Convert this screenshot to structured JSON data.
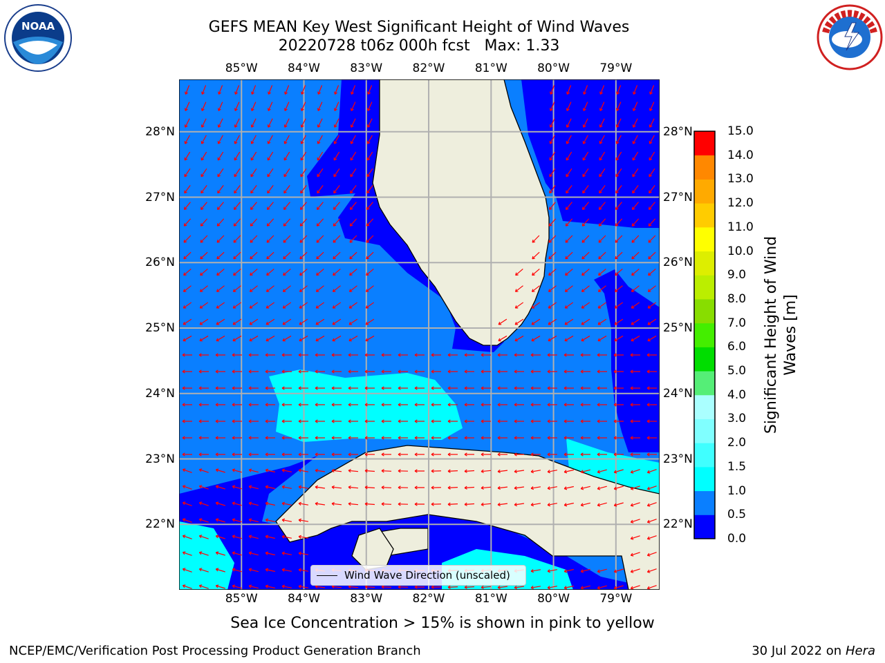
{
  "title": {
    "line1": "GEFS MEAN Key West Significant Height of Wind Waves",
    "line2": "20220728 t06z 000h fcst   Max: 1.33"
  },
  "map": {
    "lon_ticks_top": [
      "85°W",
      "84°W",
      "83°W",
      "82°W",
      "81°W",
      "80°W",
      "79°W"
    ],
    "lon_ticks_bottom": [
      "85°W",
      "84°W",
      "83°W",
      "82°W",
      "81°W",
      "80°W",
      "79°W"
    ],
    "lat_ticks_left": [
      "28°N",
      "27°N",
      "26°N",
      "25°N",
      "24°N",
      "23°N",
      "22°N"
    ],
    "lat_ticks_right": [
      "28°N",
      "27°N",
      "26°N",
      "25°N",
      "24°N",
      "23°N",
      "22°N"
    ],
    "lon_range": [
      -86.0,
      -78.3
    ],
    "lat_range": [
      21.0,
      28.8
    ],
    "legend_label": "Wind Wave Direction (unscaled)",
    "land_color": "#eeeedd",
    "arrow_color": "#ff0000"
  },
  "colorbar": {
    "label": "Significant Height of Wind Waves [m]",
    "tick_labels": [
      "0.0",
      "0.5",
      "1.0",
      "1.5",
      "2.0",
      "3.0",
      "4.0",
      "5.0",
      "6.0",
      "7.0",
      "8.0",
      "9.0",
      "10.0",
      "11.0",
      "12.0",
      "13.0",
      "14.0",
      "15.0"
    ],
    "colors": [
      "#0000ff",
      "#0a7fff",
      "#00ffff",
      "#40ffff",
      "#80ffff",
      "#aaffff",
      "#55ee77",
      "#00dd00",
      "#44ee00",
      "#88dd00",
      "#bbee00",
      "#ddee00",
      "#ffff00",
      "#ffdd00",
      "#ffbb00",
      "#ff8800",
      "#ff5500",
      "#ff2200",
      "#ff0000"
    ]
  },
  "note": "Sea Ice Concentration > 15% is shown in pink to yellow",
  "footer": {
    "left": "NCEP/EMC/Verification Post Processing Product Generation Branch",
    "right_prefix": "30 Jul 2022 on ",
    "right_host": "Hera"
  },
  "logos": {
    "noaa": "NOAA",
    "nws": "NATIONAL WEATHER SERVICE",
    "noaa_ring": "NATIONAL OCEANIC AND ATMOSPHERIC ADMINISTRATION · U.S. DEPARTMENT OF COMMERCE"
  },
  "chart_data": {
    "type": "heatmap",
    "title": "GEFS MEAN Key West Significant Height of Wind Waves",
    "subtitle": "20220728 t06z 000h fcst   Max: 1.33",
    "x_range": [
      -86.0,
      -78.3
    ],
    "y_range": [
      21.0,
      28.8
    ],
    "colorbar_range": [
      0.0,
      15.0
    ],
    "max_value": 1.33
  }
}
